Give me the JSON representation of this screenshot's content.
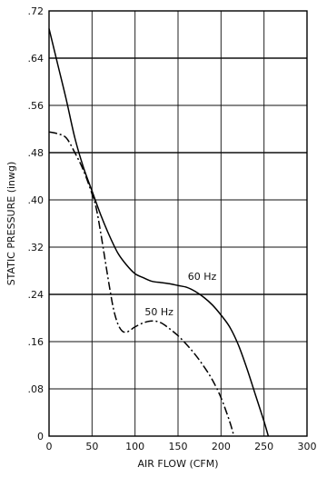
{
  "chart_data": {
    "type": "line",
    "title": "",
    "xlabel": "AIR FLOW (CFM)",
    "ylabel": "STATIC PRESSURE (inwg)",
    "xlim": [
      0,
      300
    ],
    "ylim": [
      0,
      0.72
    ],
    "x_ticks": [
      0,
      50,
      100,
      150,
      200,
      250,
      300
    ],
    "x_tick_labels": [
      "0",
      "50",
      "100",
      "150",
      "200",
      "250",
      "300"
    ],
    "y_ticks": [
      0,
      0.08,
      0.16,
      0.24,
      0.32,
      0.4,
      0.48,
      0.56,
      0.64,
      0.72
    ],
    "y_tick_labels": [
      "0",
      ".08",
      ".16",
      ".24",
      ".32",
      ".40",
      ".48",
      ".56",
      ".64",
      ".72"
    ],
    "grid": true,
    "series": [
      {
        "name": "60 Hz",
        "line_style": "solid",
        "color": "#000000",
        "x": [
          0,
          10,
          20,
          30,
          40,
          50,
          60,
          70,
          80,
          90,
          100,
          110,
          120,
          130,
          140,
          150,
          160,
          170,
          180,
          190,
          200,
          210,
          220,
          230,
          240,
          250,
          255
        ],
        "y": [
          0.69,
          0.63,
          0.57,
          0.505,
          0.455,
          0.415,
          0.375,
          0.34,
          0.31,
          0.29,
          0.275,
          0.268,
          0.262,
          0.26,
          0.258,
          0.255,
          0.252,
          0.245,
          0.235,
          0.222,
          0.205,
          0.185,
          0.155,
          0.115,
          0.07,
          0.025,
          0.0
        ]
      },
      {
        "name": "50 Hz",
        "line_style": "dash-dot",
        "color": "#000000",
        "x": [
          0,
          10,
          20,
          30,
          40,
          50,
          55,
          60,
          65,
          70,
          75,
          80,
          85,
          90,
          95,
          100,
          110,
          120,
          130,
          140,
          150,
          160,
          170,
          180,
          190,
          200,
          210,
          215
        ],
        "y": [
          0.515,
          0.512,
          0.505,
          0.48,
          0.45,
          0.41,
          0.385,
          0.345,
          0.3,
          0.255,
          0.215,
          0.19,
          0.178,
          0.176,
          0.18,
          0.185,
          0.192,
          0.195,
          0.192,
          0.182,
          0.17,
          0.155,
          0.138,
          0.118,
          0.095,
          0.065,
          0.025,
          0.0
        ]
      }
    ],
    "annotations": [
      {
        "text": "60 Hz",
        "x": 178,
        "y": 0.265
      },
      {
        "text": "50 Hz",
        "x": 128,
        "y": 0.205
      }
    ]
  }
}
